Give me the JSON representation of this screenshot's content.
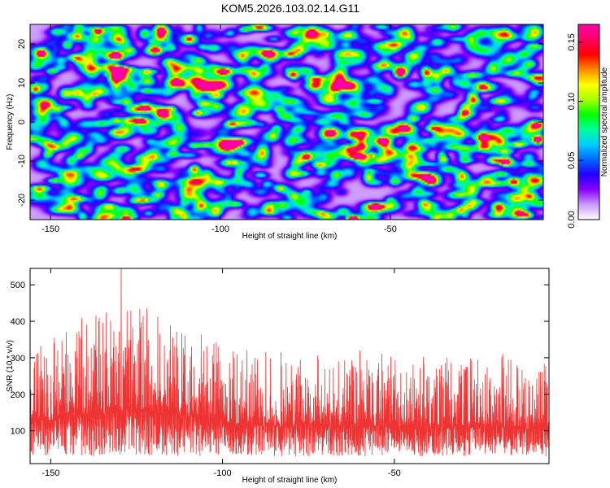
{
  "title": "KOM5.2026.103.02.14.G11",
  "chart_data": [
    {
      "type": "heatmap",
      "xlabel": "Height of straight line (km)",
      "ylabel": "Frequency (Hz)",
      "xlim": [
        -156,
        -5
      ],
      "ylim": [
        -25,
        25
      ],
      "xticks": [
        -150,
        -100,
        -50
      ],
      "yticks": [
        -20,
        -10,
        0,
        10,
        20
      ],
      "colorbar": {
        "label": "Normalized spectral amplitude",
        "range": [
          0.0,
          0.165
        ],
        "ticks": [
          "0.00",
          "0.05",
          "0.10",
          "0.15"
        ]
      },
      "colormap": [
        "#ffffff",
        "#cc99ff",
        "#8800ff",
        "#2200ff",
        "#0066ff",
        "#00ccff",
        "#00ff99",
        "#00ff00",
        "#aaff00",
        "#ffff00",
        "#ff8800",
        "#ff0000",
        "#ff0066",
        "#ff00aa"
      ],
      "peaks": [
        {
          "x": -128,
          "y": -24.5,
          "v": 0.165
        },
        {
          "x": -56,
          "y": -8.5,
          "v": 0.12
        },
        {
          "x": -130,
          "y": 0.3,
          "v": 0.07
        },
        {
          "x": -133,
          "y": 12.5,
          "v": 0.08
        },
        {
          "x": -148,
          "y": 3.6,
          "v": 0.06
        },
        {
          "x": -120,
          "y": 21,
          "v": 0.07
        }
      ]
    },
    {
      "type": "line",
      "xlabel": "Height of straight line (km)",
      "ylabel": "SNR (10 * v/v)",
      "xlim": [
        -156,
        -5
      ],
      "ylim": [
        10,
        545
      ],
      "xticks": [
        -150,
        -100,
        -50
      ],
      "yticks": [
        100,
        200,
        300,
        400,
        500
      ],
      "color": "#ee3333",
      "baseline": 30,
      "peaks": [
        {
          "x": -129.5,
          "y": 545
        },
        {
          "x": -122,
          "y": 435
        },
        {
          "x": -136,
          "y": 400
        },
        {
          "x": -109,
          "y": 330
        },
        {
          "x": -60,
          "y": 320
        },
        {
          "x": -83,
          "y": 315
        },
        {
          "x": -148,
          "y": 320
        }
      ]
    }
  ]
}
